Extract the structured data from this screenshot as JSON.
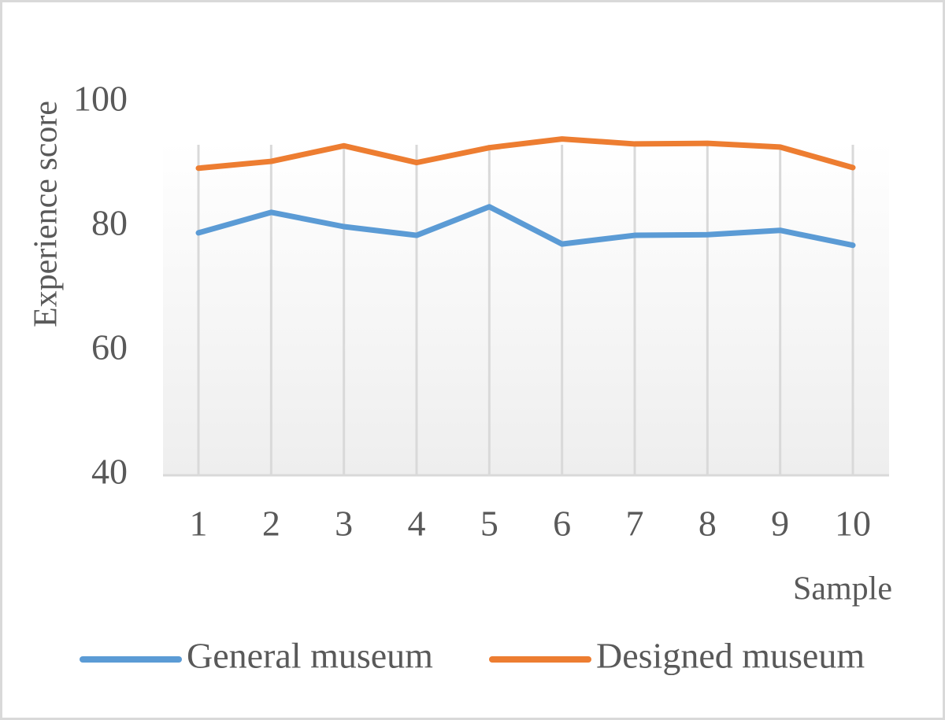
{
  "chart_data": {
    "type": "line",
    "x_label": "Sample",
    "y_label": "Experience score",
    "categories": [
      "1",
      "2",
      "3",
      "4",
      "5",
      "6",
      "7",
      "8",
      "9",
      "10"
    ],
    "series": [
      {
        "name": "General museum",
        "color": "#5b9bd5",
        "values": [
          79.0,
          82.3,
          80.0,
          78.6,
          83.2,
          77.2,
          78.6,
          78.7,
          79.4,
          77.0
        ]
      },
      {
        "name": "Designed museum",
        "color": "#ed7d31",
        "values": [
          89.4,
          90.5,
          93.0,
          90.3,
          92.7,
          94.1,
          93.3,
          93.4,
          92.8,
          89.5
        ]
      }
    ],
    "ylim": [
      40,
      100
    ],
    "yticks": [
      40,
      60,
      80,
      100
    ],
    "grid": true,
    "legend": "bottom"
  }
}
